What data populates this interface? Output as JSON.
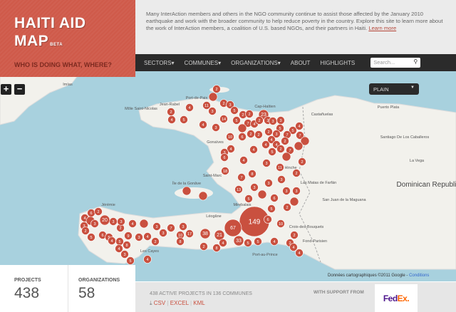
{
  "brand": {
    "title_line1": "HAITI AID",
    "title_line2": "MAP",
    "beta": "BETA",
    "tagline": "WHO IS DOING WHAT, WHERE?",
    "color": "#cf5a4a"
  },
  "intro": {
    "text": "Many InterAction members and others in the NGO community continue to assist those affected by the January 2010 earthquake and work with the broader community to help reduce poverty in the country. Explore this site to learn more about the work of InterAction members, a coalition of U.S. based NGOs, and their partners in Haiti.",
    "link": "Learn more"
  },
  "nav": {
    "items": [
      "SECTORS",
      "COMMUNES",
      "ORGANIZATIONS",
      "ABOUT",
      "HIGHLIGHTS"
    ],
    "dropdown_marker": "▾",
    "search_placeholder": "Search..."
  },
  "map": {
    "style_select": "PLAIN",
    "zoom_in": "+",
    "zoom_out": "−",
    "marker_color": "#c9503f",
    "markers": [
      "2",
      "",
      "2",
      "3",
      "11",
      "4",
      "2",
      "3",
      "5",
      "4",
      "5",
      "4",
      "3",
      "14",
      "5",
      "2",
      "2",
      "23",
      "7",
      "4",
      "2",
      "2",
      "3",
      "3",
      "4",
      "",
      "5",
      "5",
      "10",
      "6",
      "2",
      "2",
      "2",
      "3",
      "7",
      "7",
      "",
      "4",
      "2",
      "4",
      "4",
      "4",
      "4",
      "2",
      "7",
      "",
      "3",
      "6",
      "5",
      "",
      "4",
      "3",
      "11",
      "2",
      "18",
      "8",
      "2",
      "7",
      "3",
      "3",
      "13",
      "3",
      "",
      "3",
      "3",
      "6",
      "5",
      "",
      "",
      "",
      "2",
      "5",
      "149",
      "67",
      "10",
      "6",
      "2",
      "33",
      "5",
      "5",
      "4",
      "2",
      "4",
      "4",
      "21",
      "4",
      "8",
      "2",
      "38",
      "17",
      "10",
      "8",
      "3",
      "7",
      "3",
      "2",
      "3",
      "",
      "4",
      "4",
      "3",
      "9",
      "6",
      "5",
      "4",
      "5",
      "8",
      "4",
      "3",
      "5",
      "4",
      "2",
      "3",
      "3",
      "20",
      "6",
      "2",
      "4",
      "",
      "3",
      "3",
      "2",
      "5"
    ],
    "labels": [
      "Cap-Haïtien",
      "Port-de-Paix",
      "Jean-Rabel",
      "Môle Saint-Nicolas",
      "Gonaïves",
      "Saint-Marc",
      "Île de la Gonâve",
      "Jérémie",
      "Les Cayes",
      "Léogâne",
      "Port-au-Prince",
      "Croix-des-Bouquets",
      "Fond-Parisien",
      "Puerto Plata",
      "Santiago De Los Caballeros",
      "La Vega",
      "Dominican Republic",
      "Las Matas de Farfán",
      "San Juan de la Maguana",
      "Castañuelas",
      "Imías",
      "Hinche",
      "Mirebalais"
    ],
    "attribution": "Données cartographiques ©2011 Google - ",
    "attribution_link": "Conditions"
  },
  "stats": {
    "projects_label": "PROJECTS",
    "projects": "438",
    "orgs_label": "ORGANIZATIONS",
    "orgs": "58"
  },
  "footer": {
    "summary": "438 ACTIVE PROJECTS IN 136 COMMUNES",
    "download_icon": "download-icon",
    "csv": "CSV",
    "excel": "EXCEL",
    "kml": "KML",
    "sep": "|",
    "support": "WITH SUPPORT FROM",
    "sponsor_logo": "FedEx."
  }
}
